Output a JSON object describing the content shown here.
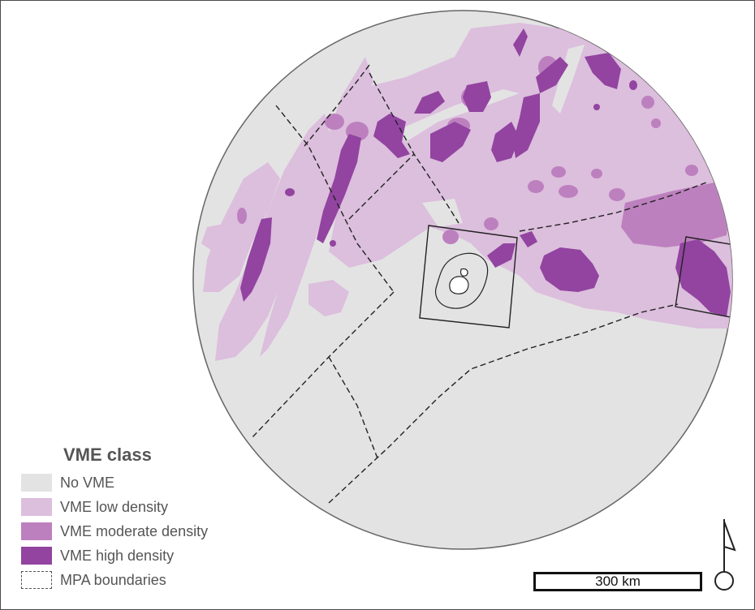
{
  "legend": {
    "title": "VME class",
    "items": [
      {
        "label": "No VME",
        "color": "#e3e3e3"
      },
      {
        "label": "VME low density",
        "color": "#dcbedd"
      },
      {
        "label": "VME moderate density",
        "color": "#bd80bf"
      },
      {
        "label": "VME high density",
        "color": "#9244a0"
      },
      {
        "label": "MPA boundaries",
        "color": "none"
      }
    ]
  },
  "scale_bar": {
    "label": "300 km"
  },
  "colors": {
    "no_vme": "#e3e3e3",
    "low": "#dcbedd",
    "moderate": "#bd80bf",
    "high": "#9244a0",
    "outline": "#666666",
    "boundary": "#222222"
  },
  "icons": {
    "north_arrow": "north-arrow-icon"
  }
}
